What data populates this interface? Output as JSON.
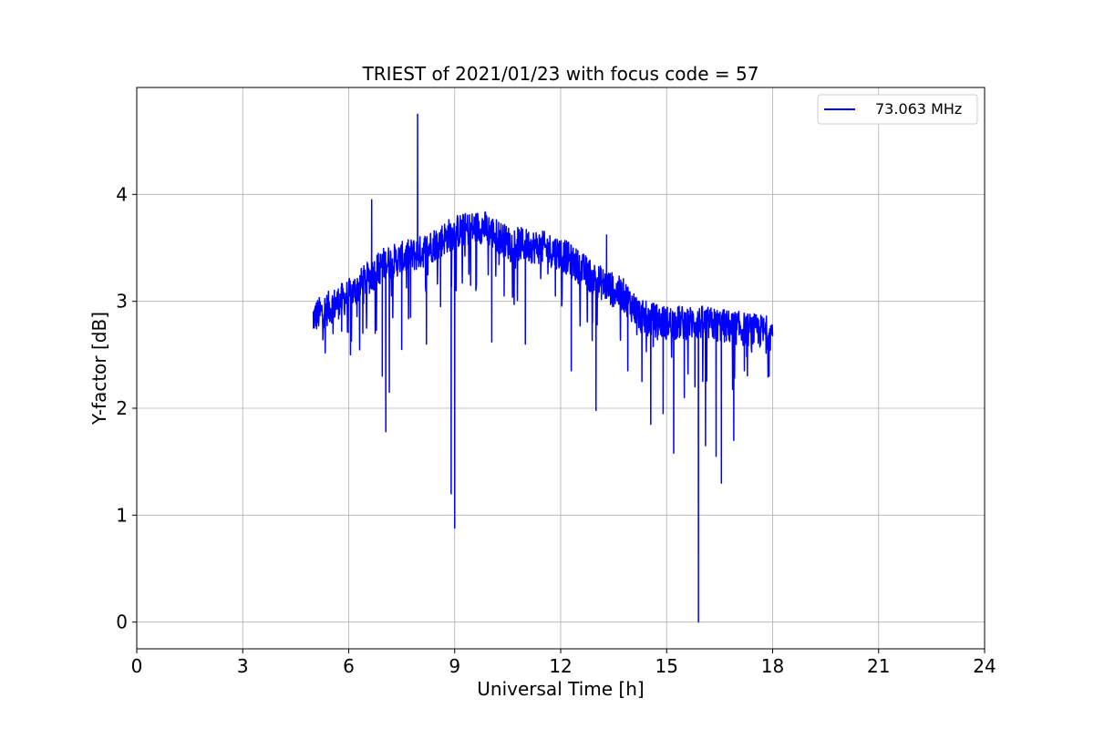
{
  "chart_data": {
    "type": "line",
    "title": "TRIEST of 2021/01/23 with focus code = 57",
    "xlabel": "Universal Time [h]",
    "ylabel": "Y-factor [dB]",
    "xlim": [
      0,
      24
    ],
    "ylim": [
      -0.25,
      5.0
    ],
    "xticks": [
      0,
      3,
      6,
      9,
      12,
      15,
      18,
      21,
      24
    ],
    "yticks": [
      0,
      1,
      2,
      3,
      4
    ],
    "xtick_labels": [
      "0",
      "3",
      "6",
      "9",
      "12",
      "15",
      "18",
      "21",
      "24"
    ],
    "ytick_labels": [
      "0",
      "1",
      "2",
      "3",
      "4"
    ],
    "grid": true,
    "legend_position": "top-right",
    "series": [
      {
        "name": "73.063 MHz",
        "color": "#0000ff",
        "trend": [
          [
            5.0,
            2.85
          ],
          [
            6.0,
            3.05
          ],
          [
            7.0,
            3.35
          ],
          [
            8.0,
            3.45
          ],
          [
            9.0,
            3.65
          ],
          [
            9.8,
            3.7
          ],
          [
            10.5,
            3.55
          ],
          [
            11.5,
            3.5
          ],
          [
            12.0,
            3.45
          ],
          [
            13.0,
            3.2
          ],
          [
            13.8,
            3.05
          ],
          [
            14.3,
            2.85
          ],
          [
            15.0,
            2.8
          ],
          [
            16.0,
            2.8
          ],
          [
            17.0,
            2.75
          ],
          [
            18.0,
            2.7
          ]
        ],
        "spikes": [
          [
            5.0,
            2.75
          ],
          [
            5.8,
            2.72
          ],
          [
            6.05,
            2.5
          ],
          [
            6.4,
            2.7
          ],
          [
            6.65,
            3.95
          ],
          [
            6.75,
            2.7
          ],
          [
            6.95,
            2.3
          ],
          [
            7.05,
            1.78
          ],
          [
            7.15,
            2.15
          ],
          [
            7.5,
            2.55
          ],
          [
            7.75,
            2.85
          ],
          [
            7.95,
            4.75
          ],
          [
            8.2,
            2.6
          ],
          [
            8.6,
            2.95
          ],
          [
            8.9,
            1.2
          ],
          [
            9.0,
            0.88
          ],
          [
            9.45,
            3.15
          ],
          [
            9.6,
            3.1
          ],
          [
            10.05,
            2.62
          ],
          [
            10.4,
            3.05
          ],
          [
            11.0,
            2.6
          ],
          [
            11.85,
            3.05
          ],
          [
            12.3,
            2.35
          ],
          [
            12.9,
            2.8
          ],
          [
            13.0,
            1.98
          ],
          [
            13.3,
            3.62
          ],
          [
            13.9,
            2.35
          ],
          [
            14.3,
            2.25
          ],
          [
            14.55,
            1.85
          ],
          [
            14.9,
            1.95
          ],
          [
            15.2,
            1.58
          ],
          [
            15.5,
            2.1
          ],
          [
            15.8,
            2.2
          ],
          [
            15.9,
            0.0
          ],
          [
            16.1,
            1.65
          ],
          [
            16.4,
            1.55
          ],
          [
            16.55,
            1.3
          ],
          [
            16.9,
            1.7
          ],
          [
            17.2,
            2.35
          ],
          [
            17.9,
            2.3
          ]
        ]
      }
    ]
  }
}
